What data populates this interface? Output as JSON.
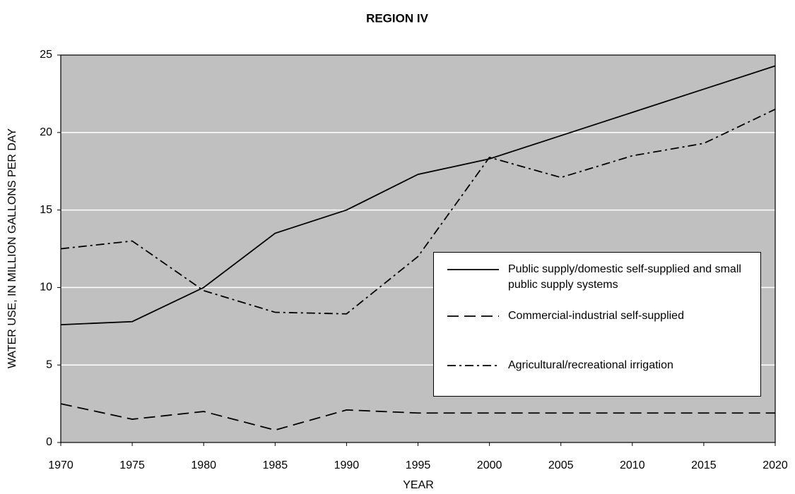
{
  "chart_data": {
    "type": "line",
    "title": "REGION IV",
    "xlabel": "YEAR",
    "ylabel": "WATER USE, IN MILLION GALLONS PER DAY",
    "x": [
      1970,
      1975,
      1980,
      1985,
      1990,
      1995,
      2000,
      2005,
      2010,
      2015,
      2020
    ],
    "series": [
      {
        "name": "Public supply/domestic self-supplied and small public supply systems",
        "color": "#000000",
        "line_style": "solid",
        "values": [
          7.6,
          7.8,
          10.0,
          13.5,
          15.0,
          17.3,
          18.3,
          19.8,
          21.3,
          22.8,
          24.3
        ]
      },
      {
        "name": "Commercial-industrial self-supplied",
        "color": "#000000",
        "line_style": "dashed",
        "values": [
          2.5,
          1.5,
          2.0,
          0.8,
          2.1,
          1.9,
          1.9,
          1.9,
          1.9,
          1.9,
          1.9
        ]
      },
      {
        "name": "Agricultural/recreational irrigation",
        "color": "#000000",
        "line_style": "dashdot",
        "values": [
          12.5,
          13.0,
          9.8,
          8.4,
          8.3,
          12.0,
          18.4,
          17.1,
          18.5,
          19.3,
          21.5
        ]
      }
    ],
    "xlim": [
      1970,
      2020
    ],
    "xticks": [
      1970,
      1975,
      1980,
      1985,
      1990,
      1995,
      2000,
      2005,
      2010,
      2015,
      2020
    ],
    "ylim": [
      0,
      25
    ],
    "yticks": [
      0,
      5,
      10,
      15,
      20,
      25
    ],
    "grid": true,
    "legend": "lower right"
  }
}
